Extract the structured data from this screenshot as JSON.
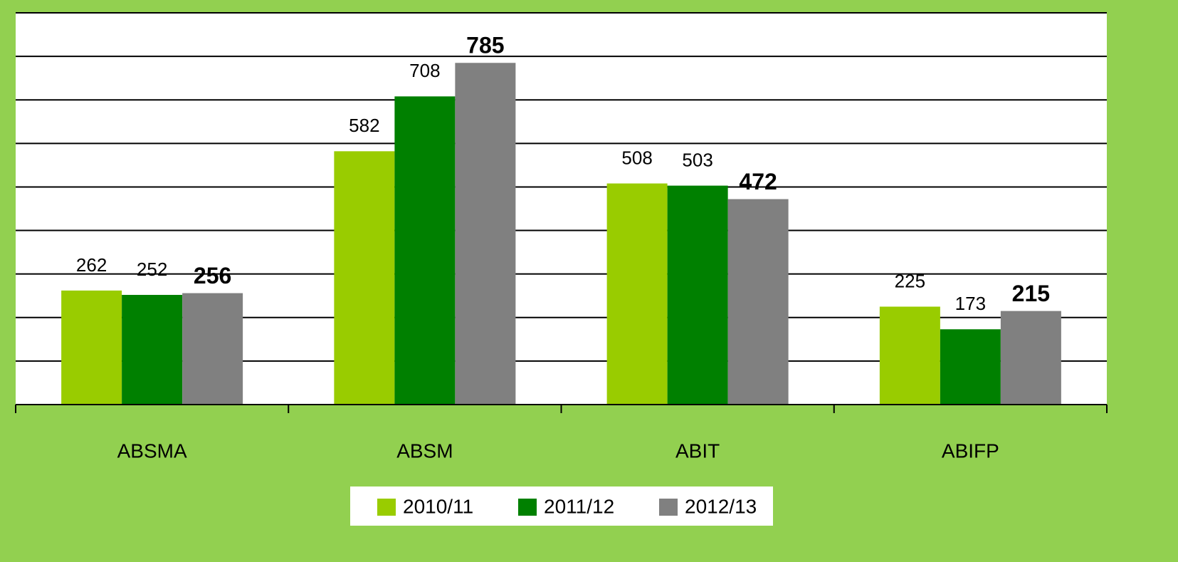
{
  "chart_data": {
    "type": "bar",
    "categories": [
      "ABSMA",
      "ABSM",
      "ABIT",
      "ABIFP"
    ],
    "series": [
      {
        "name": "2010/11",
        "color": "#99cc00",
        "values": [
          262,
          582,
          508,
          225
        ],
        "bold": false
      },
      {
        "name": "2011/12",
        "color": "#008000",
        "values": [
          252,
          708,
          503,
          173
        ],
        "bold": false
      },
      {
        "name": "2012/13",
        "color": "#808080",
        "values": [
          256,
          785,
          472,
          215
        ],
        "bold": true
      }
    ],
    "ylim": [
      0,
      900
    ],
    "yticks": [
      0,
      100,
      200,
      300,
      400,
      500,
      600,
      700,
      800,
      900
    ],
    "grid": true,
    "legend": "bottom"
  }
}
